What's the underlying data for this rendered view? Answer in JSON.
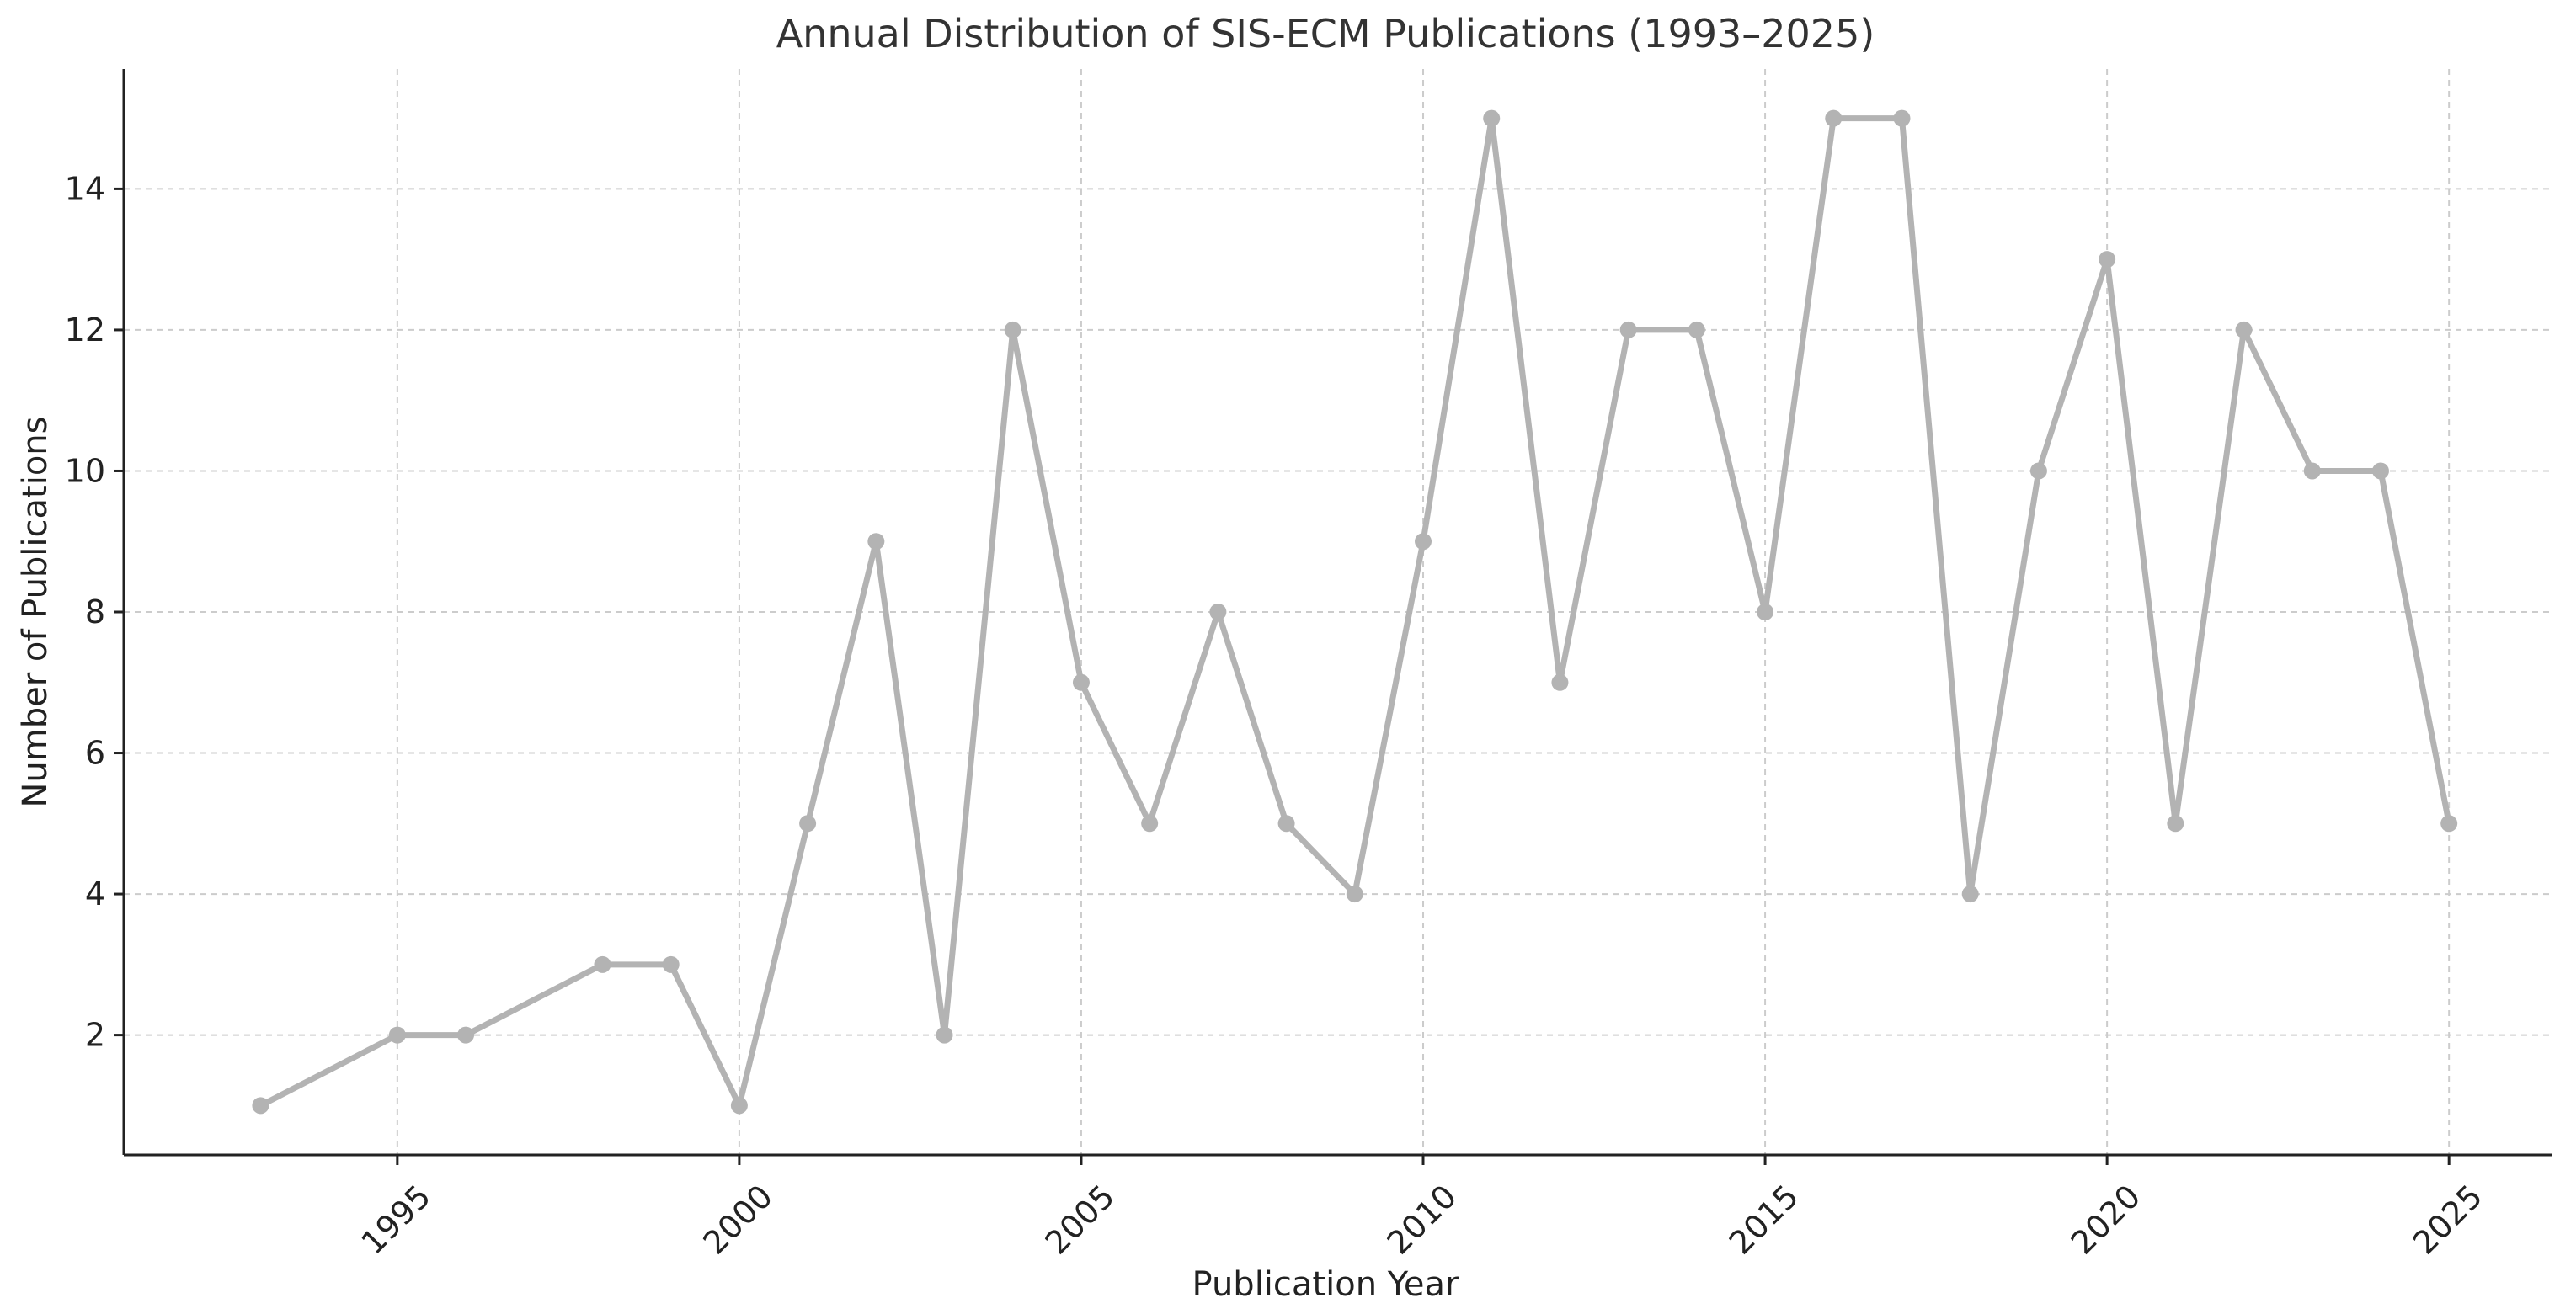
{
  "chart_data": {
    "type": "line",
    "title": "Annual Distribution of SIS-ECM Publications (1993–2025)",
    "xlabel": "Publication Year",
    "ylabel": "Number of Publications",
    "xlim": [
      1991,
      2026.5
    ],
    "ylim": [
      0.3,
      15.7
    ],
    "x_ticks": [
      1995,
      2000,
      2005,
      2010,
      2015,
      2020,
      2025
    ],
    "y_ticks": [
      2,
      4,
      6,
      8,
      10,
      12,
      14
    ],
    "grid": true,
    "legend": "none",
    "series": [
      {
        "color": "#b3b3b3",
        "marker": "circle",
        "points": [
          {
            "x": 1993,
            "y": 1
          },
          {
            "x": 1995,
            "y": 2
          },
          {
            "x": 1996,
            "y": 2
          },
          {
            "x": 1998,
            "y": 3
          },
          {
            "x": 1999,
            "y": 3
          },
          {
            "x": 2000,
            "y": 1
          },
          {
            "x": 2001,
            "y": 5
          },
          {
            "x": 2002,
            "y": 9
          },
          {
            "x": 2003,
            "y": 2
          },
          {
            "x": 2004,
            "y": 12
          },
          {
            "x": 2005,
            "y": 7
          },
          {
            "x": 2006,
            "y": 5
          },
          {
            "x": 2007,
            "y": 8
          },
          {
            "x": 2008,
            "y": 5
          },
          {
            "x": 2009,
            "y": 4
          },
          {
            "x": 2010,
            "y": 9
          },
          {
            "x": 2011,
            "y": 15
          },
          {
            "x": 2012,
            "y": 7
          },
          {
            "x": 2013,
            "y": 12
          },
          {
            "x": 2014,
            "y": 12
          },
          {
            "x": 2015,
            "y": 8
          },
          {
            "x": 2016,
            "y": 15
          },
          {
            "x": 2017,
            "y": 15
          },
          {
            "x": 2018,
            "y": 4
          },
          {
            "x": 2019,
            "y": 10
          },
          {
            "x": 2020,
            "y": 13
          },
          {
            "x": 2021,
            "y": 5
          },
          {
            "x": 2022,
            "y": 12
          },
          {
            "x": 2023,
            "y": 10
          },
          {
            "x": 2024,
            "y": 10
          },
          {
            "x": 2025,
            "y": 5
          }
        ]
      }
    ],
    "colors": {
      "line": "#b3b3b3",
      "grid": "#cccccc",
      "axis": "#222222",
      "text": "#222222"
    }
  }
}
